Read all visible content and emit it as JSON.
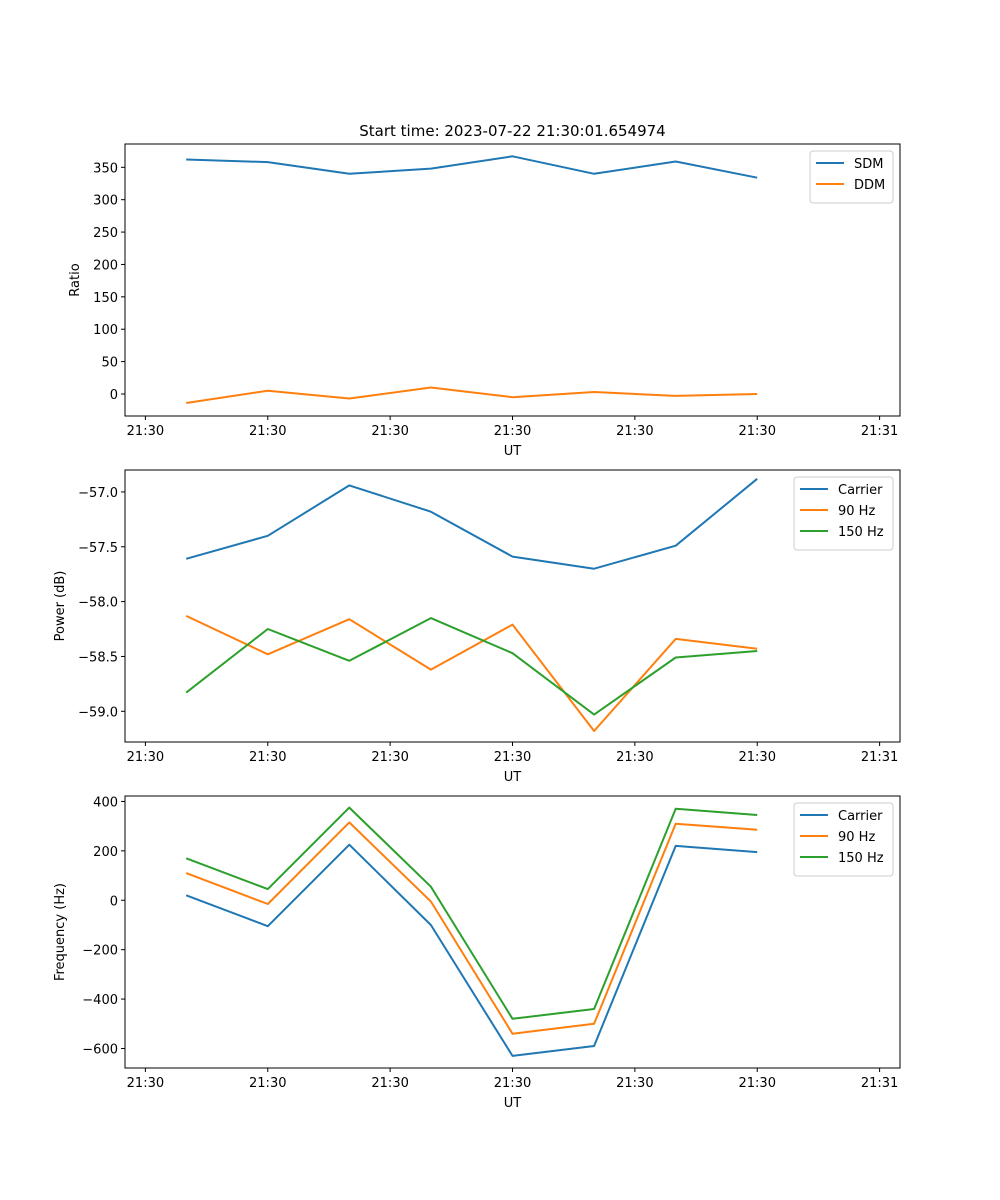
{
  "title": "Start time: 2023-07-22 21:30:01.654974",
  "chart_data": [
    {
      "type": "line",
      "title": "Start time: 2023-07-22 21:30:01.654974",
      "xlabel": "UT",
      "ylabel": "Ratio",
      "x_ticks": [
        "21:30",
        "21:30",
        "21:30",
        "21:30",
        "21:30",
        "21:30",
        "21:31"
      ],
      "xlim": [
        0,
        9.5
      ],
      "x": [
        0.75,
        1.75,
        2.75,
        3.75,
        4.75,
        5.75,
        6.75,
        7.75
      ],
      "ylim": [
        -34,
        386
      ],
      "y_ticks": [
        0,
        50,
        100,
        150,
        200,
        250,
        300,
        350
      ],
      "legend": "top-right",
      "series": [
        {
          "name": "SDM",
          "color": "#1f77b4",
          "values": [
            362,
            358,
            340,
            348,
            367,
            340,
            359,
            334
          ]
        },
        {
          "name": "DDM",
          "color": "#ff7f0e",
          "values": [
            -14,
            5,
            -7,
            10,
            -5,
            3,
            -3,
            0
          ]
        }
      ]
    },
    {
      "type": "line",
      "title": "",
      "xlabel": "UT",
      "ylabel": "Power (dB)",
      "x_ticks": [
        "21:30",
        "21:30",
        "21:30",
        "21:30",
        "21:30",
        "21:30",
        "21:31"
      ],
      "xlim": [
        0,
        9.5
      ],
      "x": [
        0.75,
        1.75,
        2.75,
        3.75,
        4.75,
        5.75,
        6.75,
        7.75
      ],
      "ylim": [
        -59.28,
        -56.8
      ],
      "y_ticks": [
        -59.0,
        -58.5,
        -58.0,
        -57.5,
        -57.0
      ],
      "legend": "top-right",
      "series": [
        {
          "name": "Carrier",
          "color": "#1f77b4",
          "values": [
            -57.61,
            -57.4,
            -56.94,
            -57.18,
            -57.59,
            -57.7,
            -57.49,
            -56.88
          ]
        },
        {
          "name": "90 Hz",
          "color": "#ff7f0e",
          "values": [
            -58.13,
            -58.48,
            -58.16,
            -58.62,
            -58.21,
            -59.18,
            -58.34,
            -58.43
          ]
        },
        {
          "name": "150 Hz",
          "color": "#2ca02c",
          "values": [
            -58.83,
            -58.25,
            -58.54,
            -58.15,
            -58.47,
            -59.03,
            -58.51,
            -58.45
          ]
        }
      ]
    },
    {
      "type": "line",
      "title": "",
      "xlabel": "UT",
      "ylabel": "Frequency (Hz)",
      "x_ticks": [
        "21:30",
        "21:30",
        "21:30",
        "21:30",
        "21:30",
        "21:30",
        "21:31"
      ],
      "xlim": [
        0,
        9.5
      ],
      "x": [
        0.75,
        1.75,
        2.75,
        3.75,
        4.75,
        5.75,
        6.75,
        7.75
      ],
      "ylim": [
        -679,
        422
      ],
      "y_ticks": [
        -600,
        -400,
        -200,
        0,
        200,
        400
      ],
      "legend": "top-right",
      "series": [
        {
          "name": "Carrier",
          "color": "#1f77b4",
          "values": [
            20,
            -105,
            225,
            -100,
            -630,
            -590,
            220,
            195
          ]
        },
        {
          "name": "90 Hz",
          "color": "#ff7f0e",
          "values": [
            110,
            -15,
            315,
            -5,
            -540,
            -500,
            310,
            285
          ]
        },
        {
          "name": "150 Hz",
          "color": "#2ca02c",
          "values": [
            170,
            45,
            375,
            55,
            -480,
            -440,
            370,
            345
          ]
        }
      ]
    }
  ]
}
